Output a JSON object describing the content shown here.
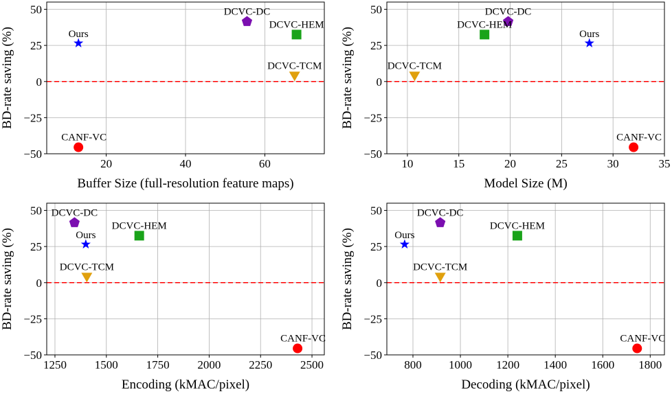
{
  "chart_data": [
    {
      "type": "scatter",
      "xlabel": "Buffer Size (full-resolution feature maps)",
      "ylabel": "BD-rate saving (%)",
      "xlim": [
        5,
        75
      ],
      "ylim": [
        -50,
        55
      ],
      "xticks": [
        20,
        40,
        60
      ],
      "yticks": [
        50,
        25,
        0,
        -25,
        -50
      ],
      "grid": true,
      "reference_line": {
        "y": 0,
        "color": "#ff0000",
        "style": "dashed"
      },
      "points": [
        {
          "name": "Ours",
          "x": 13,
          "y": 26.5,
          "marker": "star",
          "color": "#0000ff"
        },
        {
          "name": "DCVC-DC",
          "x": 55.5,
          "y": 41.5,
          "marker": "pentagon",
          "color": "#7b0fb0"
        },
        {
          "name": "DCVC-HEM",
          "x": 68,
          "y": 32.5,
          "marker": "square",
          "color": "#1aa31a"
        },
        {
          "name": "DCVC-TCM",
          "x": 67.5,
          "y": 4,
          "marker": "triangle-down",
          "color": "#e0a00d"
        },
        {
          "name": "CANF-VC",
          "x": 13,
          "y": -45.5,
          "marker": "circle",
          "color": "#ff0000"
        }
      ]
    },
    {
      "type": "scatter",
      "xlabel": "Model Size (M)",
      "ylabel": "BD-rate saving (%)",
      "xlim": [
        8,
        35
      ],
      "ylim": [
        -50,
        55
      ],
      "xticks": [
        10,
        15,
        20,
        25,
        30,
        35
      ],
      "yticks": [
        50,
        25,
        0,
        -25,
        -50
      ],
      "grid": true,
      "reference_line": {
        "y": 0,
        "color": "#ff0000",
        "style": "dashed"
      },
      "points": [
        {
          "name": "Ours",
          "x": 27.7,
          "y": 26.5,
          "marker": "star",
          "color": "#0000ff"
        },
        {
          "name": "DCVC-DC",
          "x": 19.8,
          "y": 41.5,
          "marker": "pentagon",
          "color": "#7b0fb0"
        },
        {
          "name": "DCVC-HEM",
          "x": 17.5,
          "y": 32.5,
          "marker": "square",
          "color": "#1aa31a"
        },
        {
          "name": "DCVC-TCM",
          "x": 10.7,
          "y": 4,
          "marker": "triangle-down",
          "color": "#e0a00d"
        },
        {
          "name": "CANF-VC",
          "x": 32,
          "y": -45.5,
          "marker": "circle",
          "color": "#ff0000"
        }
      ]
    },
    {
      "type": "scatter",
      "xlabel": "Encoding (kMAC/pixel)",
      "ylabel": "BD-rate saving (%)",
      "xlim": [
        1210,
        2560
      ],
      "ylim": [
        -50,
        55
      ],
      "xticks": [
        1250,
        1500,
        1750,
        2000,
        2250,
        2500
      ],
      "yticks": [
        50,
        25,
        0,
        -25,
        -50
      ],
      "grid": true,
      "reference_line": {
        "y": 0,
        "color": "#ff0000",
        "style": "dashed"
      },
      "points": [
        {
          "name": "Ours",
          "x": 1400,
          "y": 26.5,
          "marker": "star",
          "color": "#0000ff"
        },
        {
          "name": "DCVC-DC",
          "x": 1345,
          "y": 41.5,
          "marker": "pentagon",
          "color": "#7b0fb0"
        },
        {
          "name": "DCVC-HEM",
          "x": 1660,
          "y": 32.5,
          "marker": "square",
          "color": "#1aa31a"
        },
        {
          "name": "DCVC-TCM",
          "x": 1405,
          "y": 4,
          "marker": "triangle-down",
          "color": "#e0a00d"
        },
        {
          "name": "CANF-VC",
          "x": 2430,
          "y": -45.5,
          "marker": "circle",
          "color": "#ff0000"
        }
      ]
    },
    {
      "type": "scatter",
      "xlabel": "Decoding (kMAC/pixel)",
      "ylabel": "BD-rate saving (%)",
      "xlim": [
        690,
        1860
      ],
      "ylim": [
        -50,
        55
      ],
      "xticks": [
        800,
        1000,
        1200,
        1400,
        1600,
        1800
      ],
      "yticks": [
        50,
        25,
        0,
        -25,
        -50
      ],
      "grid": true,
      "reference_line": {
        "y": 0,
        "color": "#ff0000",
        "style": "dashed"
      },
      "points": [
        {
          "name": "Ours",
          "x": 765,
          "y": 26.5,
          "marker": "star",
          "color": "#0000ff"
        },
        {
          "name": "DCVC-DC",
          "x": 915,
          "y": 41.5,
          "marker": "pentagon",
          "color": "#7b0fb0"
        },
        {
          "name": "DCVC-HEM",
          "x": 1240,
          "y": 32.5,
          "marker": "square",
          "color": "#1aa31a"
        },
        {
          "name": "DCVC-TCM",
          "x": 915,
          "y": 4,
          "marker": "triangle-down",
          "color": "#e0a00d"
        },
        {
          "name": "CANF-VC",
          "x": 1745,
          "y": -45.5,
          "marker": "circle",
          "color": "#ff0000"
        }
      ]
    }
  ]
}
